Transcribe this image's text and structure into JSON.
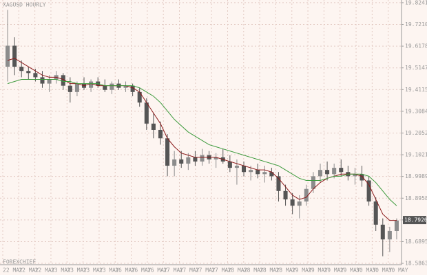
{
  "chart_data": {
    "type": "candlestick",
    "title": "XAGUSD HOURLY",
    "footer": "FOREXCHIEF",
    "up_color": "#8c8c8c",
    "down_color": "#555555",
    "grid": true,
    "ylim": [
      18.58,
      19.837
    ],
    "yticks": [
      19.82418,
      19.72103,
      19.61788,
      19.51473,
      19.41158,
      19.30843,
      19.20528,
      19.10213,
      18.99898,
      18.89583,
      18.79268,
      18.68953,
      18.58638
    ],
    "last_price": {
      "value": 18.792,
      "label": "18.7920"
    },
    "x_labels": [
      "22 MAY",
      "22 MAY",
      "22 MAY",
      "23 MAY",
      "23 MAY",
      "23 MAY",
      "23 MAY",
      "26 MAY",
      "26 MAY",
      "26 MAY",
      "27 MAY",
      "27 MAY",
      "27 MAY",
      "27 MAY",
      "28 MAY",
      "28 MAY",
      "28 MAY",
      "28 MAY",
      "29 MAY",
      "29 MAY",
      "29 MAY",
      "29 MAY",
      "30 MAY",
      "30 MAY",
      "30 MAY"
    ],
    "open": [
      19.52,
      19.62,
      19.52,
      19.5,
      19.49,
      19.47,
      19.44,
      19.46,
      19.48,
      19.43,
      19.4,
      19.44,
      19.42,
      19.45,
      19.43,
      19.41,
      19.44,
      19.42,
      19.43,
      19.4,
      19.35,
      19.25,
      19.22,
      19.18,
      19.05,
      19.08,
      19.06,
      19.09,
      19.07,
      19.1,
      19.08,
      19.09,
      19.07,
      19.04,
      19.05,
      19.02,
      19.03,
      19.01,
      19.02,
      19.0,
      18.93,
      18.89,
      18.86,
      18.88,
      18.94,
      19.0,
      19.03,
      19.01,
      19.04,
      19.02,
      19.0,
      19.01,
      18.98,
      18.88,
      18.77,
      18.7,
      18.74
    ],
    "high": [
      19.79,
      19.66,
      19.55,
      19.52,
      19.51,
      19.5,
      19.48,
      19.5,
      19.49,
      19.47,
      19.45,
      19.47,
      19.46,
      19.47,
      19.46,
      19.45,
      19.46,
      19.45,
      19.44,
      19.42,
      19.37,
      19.3,
      19.26,
      19.2,
      19.12,
      19.12,
      19.11,
      19.12,
      19.13,
      19.12,
      19.11,
      19.13,
      19.1,
      19.08,
      19.07,
      19.05,
      19.06,
      19.05,
      19.04,
      19.02,
      18.96,
      18.92,
      18.91,
      18.96,
      19.02,
      19.06,
      19.07,
      19.06,
      19.08,
      19.05,
      19.04,
      19.05,
      19.0,
      18.9,
      18.8,
      18.76,
      18.8
    ],
    "low": [
      19.45,
      19.48,
      19.47,
      19.46,
      19.45,
      19.42,
      19.4,
      19.44,
      19.41,
      19.35,
      19.38,
      19.41,
      19.4,
      19.42,
      19.4,
      19.39,
      19.41,
      19.4,
      19.38,
      19.33,
      19.22,
      19.18,
      19.15,
      19.0,
      19.0,
      19.04,
      19.03,
      19.05,
      19.05,
      19.06,
      19.04,
      19.06,
      19.02,
      18.96,
      19.0,
      18.98,
      18.99,
      18.97,
      18.98,
      18.88,
      18.86,
      18.82,
      18.8,
      18.86,
      18.92,
      18.97,
      18.98,
      18.99,
      19.0,
      18.98,
      18.96,
      18.95,
      18.86,
      18.74,
      18.62,
      18.64,
      18.7
    ],
    "close": [
      19.62,
      19.52,
      19.5,
      19.49,
      19.47,
      19.44,
      19.46,
      19.48,
      19.43,
      19.4,
      19.44,
      19.42,
      19.45,
      19.43,
      19.41,
      19.44,
      19.42,
      19.43,
      19.4,
      19.35,
      19.25,
      19.22,
      19.18,
      19.05,
      19.08,
      19.06,
      19.09,
      19.07,
      19.1,
      19.08,
      19.09,
      19.07,
      19.04,
      19.05,
      19.02,
      19.03,
      19.01,
      19.02,
      19.0,
      18.93,
      18.89,
      18.86,
      18.88,
      18.94,
      19.0,
      19.03,
      19.01,
      19.04,
      19.02,
      19.0,
      19.01,
      18.98,
      18.88,
      18.77,
      18.7,
      18.74,
      18.79
    ],
    "series": [
      {
        "color": "#8b1a1a",
        "values": [
          19.55,
          19.56,
          19.54,
          19.52,
          19.5,
          19.48,
          19.47,
          19.47,
          19.46,
          19.44,
          19.44,
          19.43,
          19.44,
          19.43,
          19.43,
          19.43,
          19.43,
          19.43,
          19.42,
          19.4,
          19.35,
          19.3,
          19.25,
          19.18,
          19.14,
          19.11,
          19.1,
          19.09,
          19.09,
          19.09,
          19.09,
          19.08,
          19.07,
          19.06,
          19.05,
          19.04,
          19.03,
          19.03,
          19.02,
          18.99,
          18.95,
          18.91,
          18.89,
          18.9,
          18.94,
          18.97,
          18.99,
          19.0,
          19.01,
          19.01,
          19.01,
          19.0,
          18.96,
          18.89,
          18.82,
          18.79,
          18.79
        ]
      },
      {
        "color": "#3c9a3c",
        "values": [
          19.44,
          19.45,
          19.46,
          19.46,
          19.46,
          19.46,
          19.46,
          19.46,
          19.45,
          19.45,
          19.44,
          19.44,
          19.44,
          19.44,
          19.43,
          19.43,
          19.43,
          19.43,
          19.43,
          19.42,
          19.4,
          19.38,
          19.35,
          19.31,
          19.27,
          19.24,
          19.21,
          19.19,
          19.17,
          19.15,
          19.14,
          19.13,
          19.12,
          19.11,
          19.1,
          19.09,
          19.08,
          19.07,
          19.06,
          19.05,
          19.03,
          19.01,
          18.99,
          18.98,
          18.98,
          18.98,
          18.99,
          19.0,
          19.0,
          19.01,
          19.01,
          19.01,
          19.0,
          18.97,
          18.93,
          18.89,
          18.86
        ]
      }
    ]
  }
}
